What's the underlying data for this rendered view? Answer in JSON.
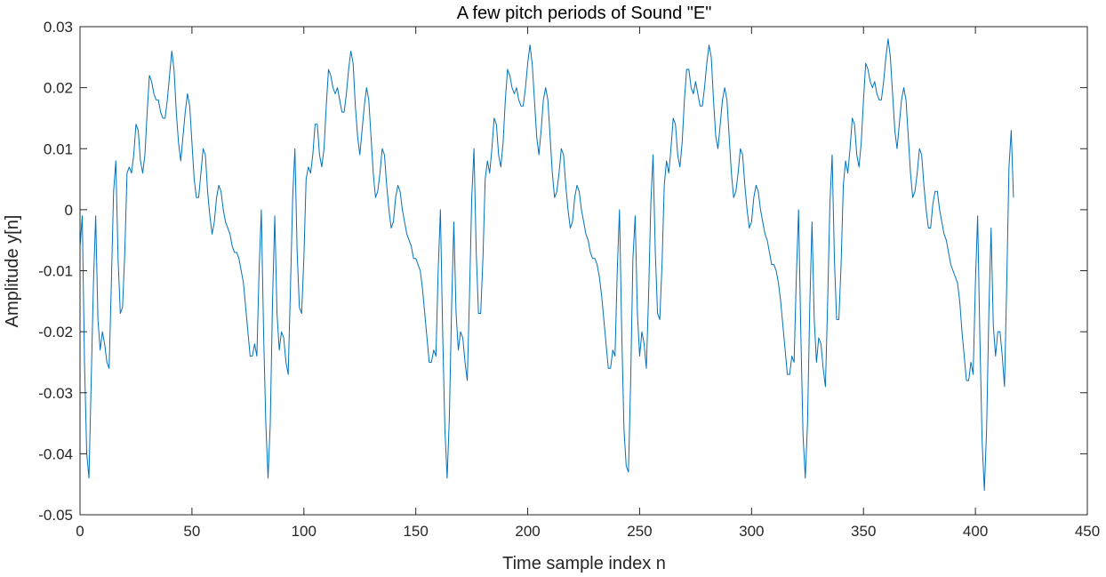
{
  "chart_data": {
    "type": "line",
    "title": "A few pitch periods of Sound \"E\"",
    "xlabel": "Time sample index n",
    "ylabel": "Amplitude y[n]",
    "xlim": [
      0,
      450
    ],
    "ylim": [
      -0.05,
      0.03
    ],
    "xticks": [
      0,
      50,
      100,
      150,
      200,
      250,
      300,
      350,
      400,
      450
    ],
    "xtick_labels": [
      "0",
      "50",
      "100",
      "150",
      "200",
      "250",
      "300",
      "350",
      "400",
      "450"
    ],
    "yticks": [
      0.03,
      0.02,
      0.01,
      0,
      -0.01,
      -0.02,
      -0.03,
      -0.04,
      -0.05
    ],
    "ytick_labels": [
      "0.03",
      "0.02",
      "0.01",
      "0",
      "-0.01",
      "-0.02",
      "-0.03",
      "-0.04",
      "-0.05"
    ],
    "grid": false,
    "line_color": "#0072BD",
    "series": [
      {
        "x_start": 0,
        "x_step": 1,
        "values": [
          -0.006,
          -0.001,
          -0.025,
          -0.04,
          -0.044,
          -0.028,
          -0.012,
          -0.001,
          -0.018,
          -0.023,
          -0.02,
          -0.022,
          -0.025,
          -0.026,
          -0.012,
          0.003,
          0.008,
          -0.008,
          -0.017,
          -0.016,
          -0.007,
          0.006,
          0.007,
          0.006,
          0.009,
          0.014,
          0.013,
          0.008,
          0.006,
          0.009,
          0.016,
          0.022,
          0.021,
          0.019,
          0.018,
          0.018,
          0.016,
          0.015,
          0.015,
          0.018,
          0.022,
          0.026,
          0.023,
          0.016,
          0.011,
          0.008,
          0.012,
          0.016,
          0.019,
          0.017,
          0.011,
          0.005,
          0.002,
          0.002,
          0.006,
          0.01,
          0.009,
          0.003,
          -0.001,
          -0.004,
          -0.002,
          0.002,
          0.004,
          0.003,
          0.0,
          -0.002,
          -0.003,
          -0.004,
          -0.006,
          -0.007,
          -0.007,
          -0.008,
          -0.01,
          -0.012,
          -0.016,
          -0.02,
          -0.024,
          -0.024,
          -0.022,
          -0.024,
          -0.01,
          0.0,
          -0.02,
          -0.035,
          -0.044,
          -0.035,
          -0.015,
          -0.001,
          -0.017,
          -0.023,
          -0.02,
          -0.021,
          -0.025,
          -0.027,
          -0.013,
          0.002,
          0.01,
          -0.007,
          -0.016,
          -0.017,
          -0.008,
          0.005,
          0.007,
          0.006,
          0.009,
          0.014,
          0.014,
          0.009,
          0.007,
          0.01,
          0.017,
          0.023,
          0.022,
          0.02,
          0.019,
          0.02,
          0.018,
          0.016,
          0.016,
          0.019,
          0.023,
          0.026,
          0.024,
          0.017,
          0.012,
          0.009,
          0.013,
          0.017,
          0.02,
          0.018,
          0.012,
          0.006,
          0.002,
          0.003,
          0.006,
          0.01,
          0.009,
          0.004,
          0.0,
          -0.003,
          -0.002,
          0.002,
          0.004,
          0.003,
          0.0,
          -0.002,
          -0.004,
          -0.005,
          -0.006,
          -0.008,
          -0.008,
          -0.009,
          -0.01,
          -0.013,
          -0.017,
          -0.021,
          -0.025,
          -0.025,
          -0.023,
          -0.024,
          -0.01,
          0.0,
          -0.02,
          -0.036,
          -0.044,
          -0.034,
          -0.016,
          -0.002,
          -0.017,
          -0.023,
          -0.02,
          -0.021,
          -0.025,
          -0.028,
          -0.014,
          0.002,
          0.01,
          -0.007,
          -0.017,
          -0.017,
          -0.008,
          0.005,
          0.008,
          0.006,
          0.01,
          0.015,
          0.014,
          0.009,
          0.007,
          0.011,
          0.018,
          0.023,
          0.022,
          0.02,
          0.019,
          0.02,
          0.018,
          0.017,
          0.017,
          0.02,
          0.024,
          0.027,
          0.024,
          0.018,
          0.012,
          0.009,
          0.013,
          0.018,
          0.02,
          0.018,
          0.012,
          0.006,
          0.002,
          0.003,
          0.006,
          0.01,
          0.009,
          0.004,
          0.0,
          -0.003,
          -0.002,
          0.002,
          0.004,
          0.003,
          0.0,
          -0.002,
          -0.004,
          -0.005,
          -0.007,
          -0.008,
          -0.008,
          -0.009,
          -0.011,
          -0.014,
          -0.018,
          -0.022,
          -0.026,
          -0.026,
          -0.023,
          -0.024,
          -0.01,
          0.0,
          -0.02,
          -0.036,
          -0.042,
          -0.043,
          -0.028,
          -0.008,
          -0.001,
          -0.017,
          -0.024,
          -0.02,
          -0.022,
          -0.026,
          -0.014,
          0.001,
          0.009,
          -0.007,
          -0.017,
          -0.018,
          -0.009,
          0.004,
          0.008,
          0.006,
          0.01,
          0.015,
          0.014,
          0.009,
          0.007,
          0.011,
          0.018,
          0.023,
          0.023,
          0.02,
          0.019,
          0.021,
          0.019,
          0.017,
          0.017,
          0.02,
          0.024,
          0.027,
          0.025,
          0.018,
          0.012,
          0.01,
          0.014,
          0.018,
          0.02,
          0.018,
          0.012,
          0.006,
          0.002,
          0.003,
          0.006,
          0.01,
          0.009,
          0.004,
          0.0,
          -0.003,
          -0.002,
          0.002,
          0.004,
          0.003,
          0.0,
          -0.002,
          -0.004,
          -0.005,
          -0.007,
          -0.009,
          -0.009,
          -0.01,
          -0.012,
          -0.015,
          -0.019,
          -0.023,
          -0.027,
          -0.027,
          -0.024,
          -0.025,
          -0.011,
          0.0,
          -0.02,
          -0.037,
          -0.044,
          -0.035,
          -0.016,
          -0.002,
          -0.018,
          -0.025,
          -0.021,
          -0.022,
          -0.026,
          -0.029,
          -0.015,
          0.001,
          0.009,
          -0.008,
          -0.018,
          -0.018,
          -0.009,
          0.004,
          0.008,
          0.006,
          0.01,
          0.015,
          0.014,
          0.009,
          0.007,
          0.011,
          0.018,
          0.024,
          0.023,
          0.021,
          0.02,
          0.021,
          0.019,
          0.018,
          0.018,
          0.021,
          0.025,
          0.028,
          0.025,
          0.019,
          0.013,
          0.01,
          0.014,
          0.018,
          0.02,
          0.018,
          0.012,
          0.006,
          0.002,
          0.003,
          0.006,
          0.01,
          0.009,
          0.004,
          0.0,
          -0.003,
          -0.003,
          0.001,
          0.003,
          0.003,
          0.0,
          -0.002,
          -0.004,
          -0.005,
          -0.007,
          -0.009,
          -0.01,
          -0.011,
          -0.012,
          -0.015,
          -0.02,
          -0.024,
          -0.028,
          -0.028,
          -0.025,
          -0.027,
          -0.012,
          -0.001,
          -0.021,
          -0.038,
          -0.046,
          -0.036,
          -0.017,
          -0.003,
          -0.019,
          -0.024,
          -0.02,
          -0.02,
          -0.024,
          -0.029,
          -0.012,
          0.007,
          0.013,
          0.002
        ]
      }
    ]
  }
}
